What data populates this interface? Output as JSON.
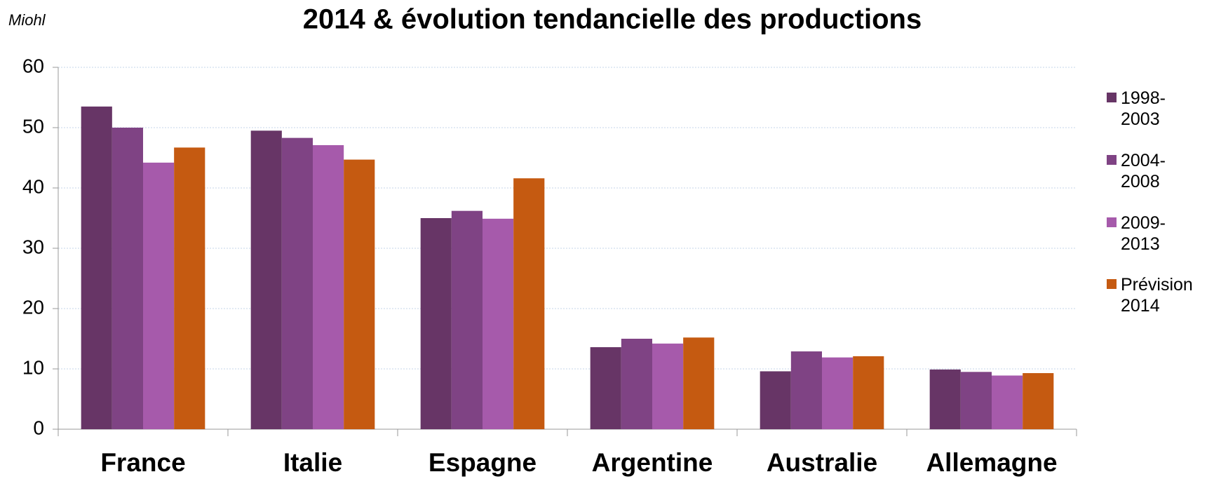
{
  "chart_data": {
    "type": "bar",
    "title": "2014 & évolution tendancielle des productions",
    "y_axis_label": "Miohl",
    "categories": [
      "France",
      "Italie",
      "Espagne",
      "Argentine",
      "Australie",
      "Allemagne"
    ],
    "series": [
      {
        "name": "1998-2003",
        "color": "#673566",
        "values": [
          53.5,
          49.5,
          35.0,
          13.6,
          9.6,
          9.9
        ]
      },
      {
        "name": "2004-2008",
        "color": "#7f4384",
        "values": [
          50.0,
          48.3,
          36.2,
          15.0,
          12.9,
          9.5
        ]
      },
      {
        "name": "2009-2013",
        "color": "#a65aab",
        "values": [
          44.2,
          47.1,
          34.9,
          14.2,
          11.9,
          8.9
        ]
      },
      {
        "name": "Prévision 2014",
        "color": "#c55a11",
        "values": [
          46.7,
          44.7,
          41.6,
          15.2,
          12.1,
          9.3
        ]
      }
    ],
    "ylim": [
      0,
      60
    ],
    "yticks": [
      0,
      10,
      20,
      30,
      40,
      50,
      60
    ],
    "grid": true,
    "legend": "right"
  }
}
